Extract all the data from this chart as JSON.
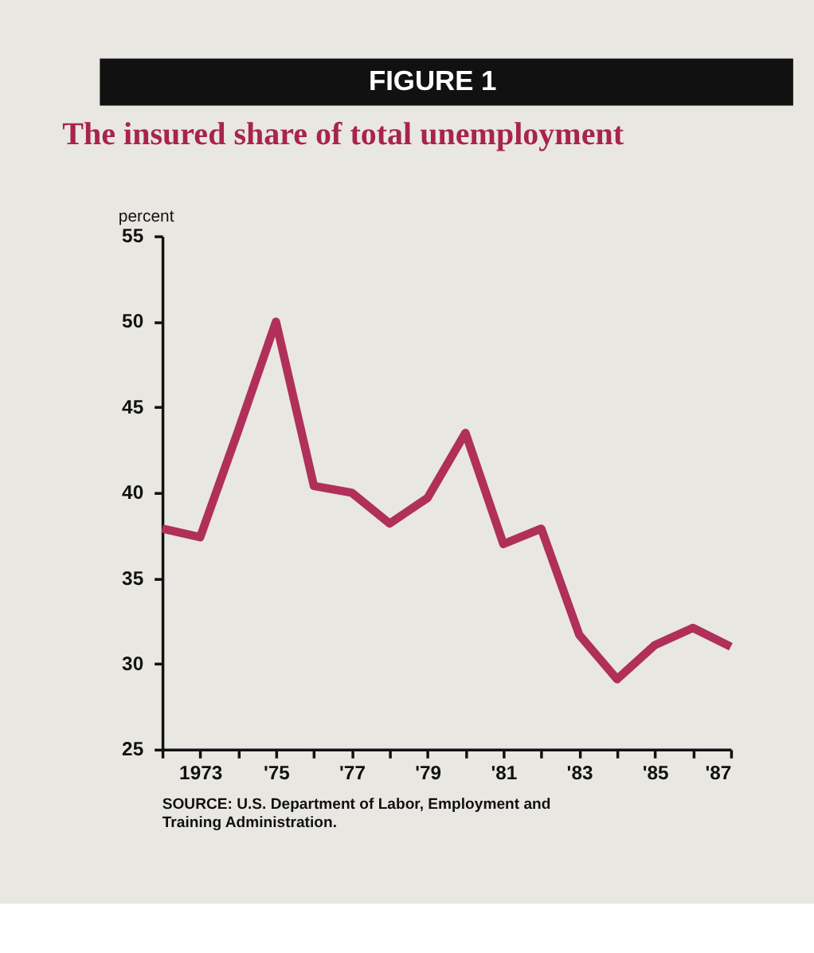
{
  "chart_data": {
    "type": "line",
    "title": "FIGURE 1",
    "subtitle": "The insured share of total unemployment",
    "ylabel": "percent",
    "x": [
      1972,
      1973,
      1974,
      1975,
      1976,
      1977,
      1978,
      1979,
      1980,
      1981,
      1982,
      1983,
      1984,
      1985,
      1986,
      1987
    ],
    "series": [
      {
        "color": "#b0305a",
        "values": [
          37.9,
          37.4,
          43.6,
          50.0,
          40.4,
          40.0,
          38.2,
          39.7,
          43.5,
          37.0,
          37.9,
          31.7,
          29.1,
          31.1,
          32.1,
          31.0
        ]
      }
    ],
    "xlim": [
      1972,
      1987
    ],
    "xticks": [
      {
        "value": 1972,
        "label": null
      },
      {
        "value": 1973,
        "label": "1973"
      },
      {
        "value": 1974,
        "label": null
      },
      {
        "value": 1975,
        "label": "'75"
      },
      {
        "value": 1976,
        "label": null
      },
      {
        "value": 1977,
        "label": "'77"
      },
      {
        "value": 1978,
        "label": null
      },
      {
        "value": 1979,
        "label": "'79"
      },
      {
        "value": 1980,
        "label": null
      },
      {
        "value": 1981,
        "label": "'81"
      },
      {
        "value": 1982,
        "label": null
      },
      {
        "value": 1983,
        "label": "'83"
      },
      {
        "value": 1984,
        "label": null
      },
      {
        "value": 1985,
        "label": "'85"
      },
      {
        "value": 1986,
        "label": null
      },
      {
        "value": 1987,
        "label": "'87"
      }
    ],
    "ylim": [
      25,
      55
    ],
    "yticks": [
      25,
      30,
      35,
      40,
      45,
      50,
      55
    ],
    "grid": false,
    "marker": "none",
    "line_style": "solid",
    "annotations": [
      "SOURCE: U.S. Department of Labor, Employment and Training Administration."
    ]
  }
}
